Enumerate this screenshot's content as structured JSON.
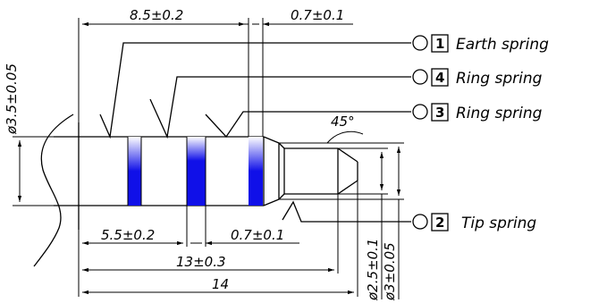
{
  "dimensions": {
    "top_length": "8.5±0.2",
    "top_small": "0.7±0.1",
    "diameter_main": "ø3.5±0.05",
    "angle": "45°",
    "bottom_left": "5.5±0.2",
    "bottom_small": "0.7±0.1",
    "mid_length": "13±0.3",
    "total_length": "14",
    "tip_dia_inner": "ø2.5±0.1",
    "tip_dia_outer": "ø3±0.05"
  },
  "labels": [
    {
      "number": "1",
      "text": "Earth spring"
    },
    {
      "number": "4",
      "text": "Ring spring"
    },
    {
      "number": "3",
      "text": "Ring spring"
    },
    {
      "number": "2",
      "text": "Tip spring"
    }
  ],
  "colors": {
    "insulator": "#1010e8",
    "line": "#000000"
  }
}
